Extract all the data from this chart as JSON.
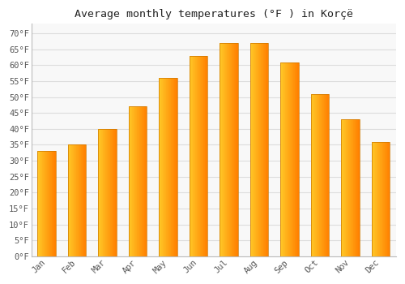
{
  "title": "Average monthly temperatures (°F ) in Korçë",
  "months": [
    "Jan",
    "Feb",
    "Mar",
    "Apr",
    "May",
    "Jun",
    "Jul",
    "Aug",
    "Sep",
    "Oct",
    "Nov",
    "Dec"
  ],
  "values": [
    33,
    35,
    40,
    47,
    56,
    63,
    67,
    67,
    61,
    51,
    43,
    36
  ],
  "bar_color_main": "#FFA500",
  "bar_color_light": "#FFD040",
  "bar_color_dark": "#E07800",
  "background_color": "#FFFFFF",
  "plot_bg_color": "#F8F8F8",
  "grid_color": "#DDDDDD",
  "ytick_labels": [
    "0°F",
    "5°F",
    "10°F",
    "15°F",
    "20°F",
    "25°F",
    "30°F",
    "35°F",
    "40°F",
    "45°F",
    "50°F",
    "55°F",
    "60°F",
    "65°F",
    "70°F"
  ],
  "ytick_values": [
    0,
    5,
    10,
    15,
    20,
    25,
    30,
    35,
    40,
    45,
    50,
    55,
    60,
    65,
    70
  ],
  "ylim": [
    0,
    73
  ],
  "title_fontsize": 9.5,
  "tick_fontsize": 7.5,
  "font_family": "monospace"
}
